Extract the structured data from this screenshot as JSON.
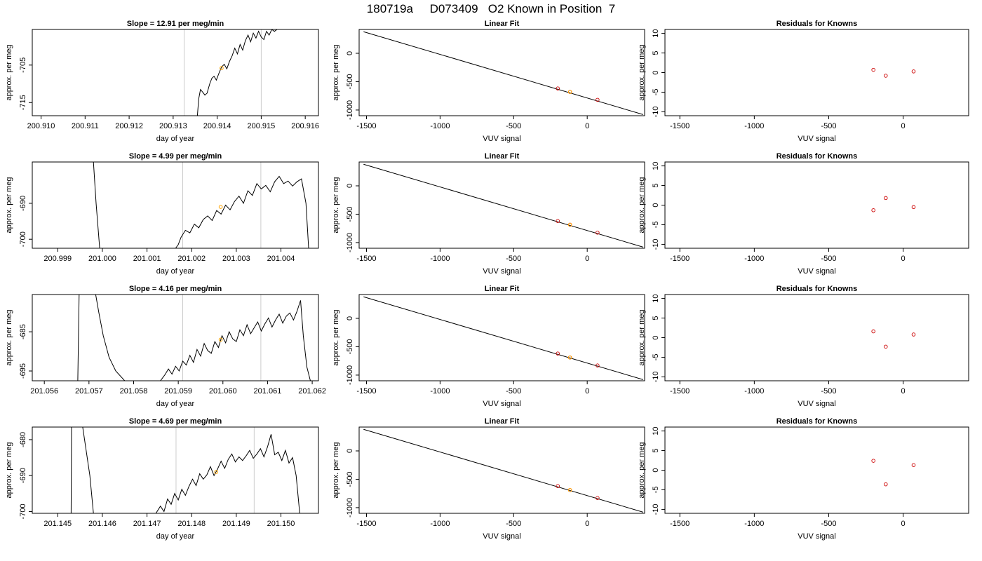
{
  "page_title": "180719a     D073409   O2 Known in Position  7",
  "colors": {
    "trace": "#000000",
    "vline": "#cccccc",
    "known_point": "#ffa500",
    "fit_point": "#cc0000",
    "fit_line": "#000000"
  },
  "chart_data": [
    {
      "type": "line",
      "row": 1,
      "title": "Slope =  12.91  per meg/min",
      "xlabel": "day of year",
      "ylabel": "approx. per meg",
      "xlim": [
        200.9098,
        200.9163
      ],
      "ylim": [
        -718.5,
        -695.5
      ],
      "xticks": [
        200.91,
        200.911,
        200.912,
        200.913,
        200.914,
        200.915,
        200.916
      ],
      "xtick_labels": [
        "200.910",
        "200.911",
        "200.912",
        "200.913",
        "200.914",
        "200.915",
        "200.916"
      ],
      "yticks": [
        -705,
        -715
      ],
      "ytick_labels": [
        "-705",
        "-715"
      ],
      "vlines": [
        200.91325,
        200.915
      ],
      "trace_x": [
        200.91355,
        200.91358,
        200.91362,
        200.91367,
        200.91372,
        200.91377,
        200.91383,
        200.91388,
        200.91393,
        200.91398,
        200.91404,
        200.9141,
        200.91416,
        200.91422,
        200.91428,
        200.91434,
        200.9144,
        200.91446,
        200.91452,
        200.91458,
        200.91464,
        200.9147,
        200.91476,
        200.91482,
        200.91488,
        200.91494,
        200.915,
        200.91506,
        200.91512,
        200.91518,
        200.91524,
        200.9153,
        200.91536
      ],
      "trace_y": [
        -718.5,
        -714.0,
        -711.5,
        -712.2,
        -713.0,
        -712.5,
        -710.0,
        -708.5,
        -708.0,
        -709.0,
        -707.2,
        -705.5,
        -704.8,
        -706.0,
        -704.0,
        -702.5,
        -700.5,
        -702.0,
        -699.5,
        -701.0,
        -698.5,
        -697.0,
        -698.8,
        -696.5,
        -697.8,
        -696.0,
        -697.5,
        -698.2,
        -696.0,
        -697.0,
        -695.5,
        -696.0,
        -695.5
      ],
      "known_point": {
        "x": 200.9141,
        "y": -705.8
      }
    },
    {
      "type": "line",
      "title": "Linear Fit",
      "xlabel": "VUV signal",
      "ylabel": "approx. per meg",
      "xlim": [
        -1550,
        390
      ],
      "ylim": [
        -1100,
        420
      ],
      "xticks": [
        -1500,
        -1000,
        -500,
        0
      ],
      "xtick_labels": [
        "-1500",
        "-1000",
        "-500",
        "0"
      ],
      "yticks": [
        0,
        -500,
        -1000
      ],
      "ytick_labels": [
        "0",
        "-500",
        "-1000"
      ],
      "fit_line": {
        "x": [
          -1520,
          380
        ],
        "y": [
          380,
          -1080
        ]
      },
      "points": [
        {
          "x": -200,
          "y": -620
        },
        {
          "x": -117,
          "y": -680
        },
        {
          "x": 70,
          "y": -820
        }
      ],
      "highlight": {
        "x": -117,
        "y": -681
      }
    },
    {
      "type": "scatter",
      "title": "Residuals for Knowns",
      "xlabel": "VUV signal",
      "ylabel": "approx. per meg",
      "xlim": [
        -1600,
        440
      ],
      "ylim": [
        -11,
        11
      ],
      "xticks": [
        -1500,
        -1000,
        -500,
        0
      ],
      "xtick_labels": [
        "-1500",
        "-1000",
        "-500",
        "0"
      ],
      "yticks": [
        10,
        5,
        0,
        -5,
        -10
      ],
      "ytick_labels": [
        "10",
        "5",
        "0",
        "-5",
        "-10"
      ],
      "points": [
        {
          "x": -200,
          "y": 0.7
        },
        {
          "x": -117,
          "y": -0.8
        },
        {
          "x": 70,
          "y": 0.3
        }
      ]
    },
    {
      "type": "line",
      "row": 2,
      "title": "Slope =  4.99  per meg/min",
      "xlabel": "day of year",
      "ylabel": "approx. per meg",
      "xlim": [
        200.99843,
        201.00484
      ],
      "ylim": [
        -702.5,
        -678.5
      ],
      "xticks": [
        200.999,
        201.0,
        201.001,
        201.002,
        201.003,
        201.004
      ],
      "xtick_labels": [
        "200.999",
        "201.000",
        "201.001",
        "201.002",
        "201.003",
        "201.004"
      ],
      "yticks": [
        -690,
        -700
      ],
      "ytick_labels": [
        "-690",
        "-700"
      ],
      "vlines": [
        201.0018,
        201.00355
      ],
      "trace_x": [
        200.9995,
        200.9996,
        200.9997,
        200.9998,
        200.99986,
        200.99994,
        201.00004,
        201.00014,
        201.00024,
        201.00034,
        201.00044,
        201.00054,
        201.00064,
        201.00074,
        201.00084,
        201.00094,
        201.00104,
        201.00114,
        201.00124,
        201.00134,
        201.00144,
        201.00154,
        201.00164,
        201.0017,
        201.00176,
        201.00186,
        201.00196,
        201.00206,
        201.00216,
        201.00226,
        201.00236,
        201.00246,
        201.00256,
        201.00266,
        201.00276,
        201.00286,
        201.00296,
        201.00306,
        201.00316,
        201.00326,
        201.00336,
        201.00346,
        201.00356,
        201.00366,
        201.00376,
        201.00386,
        201.00396,
        201.00406,
        201.00416,
        201.00426,
        201.00436,
        201.00446,
        201.00456,
        201.00462
      ],
      "trace_y": [
        -678.5,
        -678.5,
        -678.5,
        -678.5,
        -690.0,
        -702.5,
        -702.5,
        -702.5,
        -702.5,
        -702.5,
        -702.5,
        -702.5,
        -702.5,
        -702.5,
        -702.5,
        -702.5,
        -702.5,
        -702.5,
        -702.5,
        -702.5,
        -702.5,
        -702.5,
        -702.5,
        -701.5,
        -699.5,
        -697.5,
        -698.2,
        -695.8,
        -696.8,
        -694.5,
        -693.5,
        -694.8,
        -692.0,
        -693.0,
        -690.5,
        -691.8,
        -689.5,
        -688.0,
        -690.0,
        -686.5,
        -687.8,
        -684.5,
        -686.0,
        -685.0,
        -686.8,
        -684.0,
        -682.5,
        -684.5,
        -683.8,
        -685.2,
        -684.0,
        -683.2,
        -690.0,
        -702.5
      ],
      "trace_note": "",
      "known_point": {
        "x": 201.00265,
        "y": -691.0
      }
    },
    {
      "type": "line",
      "title": "Linear Fit",
      "xlabel": "VUV signal",
      "ylabel": "approx. per meg",
      "xlim": [
        -1550,
        390
      ],
      "ylim": [
        -1100,
        420
      ],
      "xticks": [
        -1500,
        -1000,
        -500,
        0
      ],
      "xtick_labels": [
        "-1500",
        "-1000",
        "-500",
        "0"
      ],
      "yticks": [
        0,
        -500,
        -1000
      ],
      "ytick_labels": [
        "0",
        "-500",
        "-1000"
      ],
      "fit_line": {
        "x": [
          -1520,
          380
        ],
        "y": [
          380,
          -1080
        ]
      },
      "points": [
        {
          "x": -200,
          "y": -620
        },
        {
          "x": -117,
          "y": -685
        },
        {
          "x": 70,
          "y": -825
        }
      ],
      "highlight": {
        "x": -117,
        "y": -687
      }
    },
    {
      "type": "scatter",
      "title": "Residuals for Knowns",
      "xlabel": "VUV signal",
      "ylabel": "approx. per meg",
      "xlim": [
        -1600,
        440
      ],
      "ylim": [
        -11,
        11
      ],
      "xticks": [
        -1500,
        -1000,
        -500,
        0
      ],
      "xtick_labels": [
        "-1500",
        "-1000",
        "-500",
        "0"
      ],
      "yticks": [
        10,
        5,
        0,
        -5,
        -10
      ],
      "ytick_labels": [
        "10",
        "5",
        "0",
        "-5",
        "-10"
      ],
      "points": [
        {
          "x": -200,
          "y": -1.3
        },
        {
          "x": -117,
          "y": 1.8
        },
        {
          "x": 70,
          "y": -0.5
        }
      ]
    },
    {
      "type": "line",
      "row": 3,
      "title": "Slope =  4.16  per meg/min",
      "xlabel": "day of year",
      "ylabel": "approx. per meg",
      "xlim": [
        201.05573,
        201.06214
      ],
      "ylim": [
        -697.5,
        -675.5
      ],
      "xticks": [
        201.056,
        201.057,
        201.058,
        201.059,
        201.06,
        201.061,
        201.062
      ],
      "xtick_labels": [
        "201.056",
        "201.057",
        "201.058",
        "201.059",
        "201.060",
        "201.061",
        "201.062"
      ],
      "yticks": [
        -685,
        -695
      ],
      "ytick_labels": [
        "-685",
        "-695"
      ],
      "vlines": [
        201.0591,
        201.06085
      ],
      "trace_x": [
        201.05675,
        201.05678,
        201.057,
        201.05715,
        201.05722,
        201.05732,
        201.05745,
        201.0576,
        201.0578,
        201.058,
        201.0582,
        201.0584,
        201.0586,
        201.0587,
        201.05878,
        201.05886,
        201.05894,
        201.05902,
        201.0591,
        201.05918,
        201.05926,
        201.05934,
        201.05942,
        201.0595,
        201.05958,
        201.05966,
        201.05974,
        201.05982,
        201.0599,
        201.05998,
        201.06006,
        201.06014,
        201.06022,
        201.0603,
        201.06038,
        201.06046,
        201.06054,
        201.06062,
        201.0607,
        201.06078,
        201.06086,
        201.06094,
        201.06102,
        201.0611,
        201.06118,
        201.06126,
        201.06134,
        201.06142,
        201.0615,
        201.06158,
        201.06166,
        201.06174,
        201.0618,
        201.06188,
        201.06196
      ],
      "trace_y": [
        -697.5,
        -675.5,
        -675.5,
        -675.5,
        -680.0,
        -686.0,
        -691.5,
        -695.0,
        -697.5,
        -697.5,
        -697.5,
        -697.5,
        -697.5,
        -696.0,
        -694.5,
        -695.8,
        -693.8,
        -695.0,
        -692.5,
        -693.5,
        -691.0,
        -692.8,
        -689.5,
        -691.2,
        -688.0,
        -689.8,
        -690.5,
        -687.5,
        -689.0,
        -686.0,
        -687.8,
        -685.0,
        -686.8,
        -687.5,
        -684.5,
        -686.0,
        -683.2,
        -685.5,
        -684.0,
        -682.5,
        -684.8,
        -683.0,
        -681.5,
        -683.8,
        -682.0,
        -680.5,
        -682.8,
        -681.0,
        -680.2,
        -682.0,
        -679.8,
        -677.0,
        -686.0,
        -694.0,
        -697.5
      ],
      "known_point": {
        "x": 201.05995,
        "y": -687.0
      }
    },
    {
      "type": "line",
      "title": "Linear Fit",
      "xlabel": "VUV signal",
      "ylabel": "approx. per meg",
      "xlim": [
        -1550,
        390
      ],
      "ylim": [
        -1100,
        420
      ],
      "xticks": [
        -1500,
        -1000,
        -500,
        0
      ],
      "xtick_labels": [
        "-1500",
        "-1000",
        "-500",
        "0"
      ],
      "yticks": [
        0,
        -500,
        -1000
      ],
      "ytick_labels": [
        "0",
        "-500",
        "-1000"
      ],
      "fit_line": {
        "x": [
          -1520,
          380
        ],
        "y": [
          380,
          -1080
        ]
      },
      "points": [
        {
          "x": -200,
          "y": -620
        },
        {
          "x": -117,
          "y": -690
        },
        {
          "x": 70,
          "y": -830
        }
      ],
      "highlight": {
        "x": -117,
        "y": -690
      }
    },
    {
      "type": "scatter",
      "title": "Residuals for Knowns",
      "xlabel": "VUV signal",
      "ylabel": "approx. per meg",
      "xlim": [
        -1600,
        440
      ],
      "ylim": [
        -11,
        11
      ],
      "xticks": [
        -1500,
        -1000,
        -500,
        0
      ],
      "xtick_labels": [
        "-1500",
        "-1000",
        "-500",
        "0"
      ],
      "yticks": [
        10,
        5,
        0,
        -5,
        -10
      ],
      "ytick_labels": [
        "10",
        "5",
        "0",
        "-5",
        "-10"
      ],
      "points": [
        {
          "x": -200,
          "y": 1.6
        },
        {
          "x": -117,
          "y": -2.3
        },
        {
          "x": 70,
          "y": 0.8
        }
      ]
    },
    {
      "type": "line",
      "row": 4,
      "title": "Slope =  4.69  per meg/min",
      "xlabel": "day of year",
      "ylabel": "approx. per meg",
      "xlim": [
        201.14443,
        201.15084
      ],
      "ylim": [
        -700.5,
        -676.5
      ],
      "xticks": [
        201.145,
        201.146,
        201.147,
        201.148,
        201.149,
        201.15
      ],
      "xtick_labels": [
        "201.145",
        "201.146",
        "201.147",
        "201.148",
        "201.149",
        "201.150"
      ],
      "yticks": [
        -680,
        -690,
        -700
      ],
      "ytick_labels": [
        "-680",
        "-690",
        "-700"
      ],
      "vlines": [
        201.14765,
        201.1494
      ],
      "trace_x": [
        201.1453,
        201.14531,
        201.14556,
        201.14572,
        201.1458,
        201.146,
        201.1462,
        201.1464,
        201.1466,
        201.1468,
        201.147,
        201.1472,
        201.1473,
        201.14738,
        201.14746,
        201.14754,
        201.14762,
        201.1477,
        201.14778,
        201.14786,
        201.14794,
        201.14802,
        201.1481,
        201.14818,
        201.14826,
        201.14834,
        201.14842,
        201.1485,
        201.14858,
        201.14866,
        201.14874,
        201.14882,
        201.1489,
        201.14898,
        201.14906,
        201.14914,
        201.14922,
        201.1493,
        201.14938,
        201.14946,
        201.14954,
        201.14962,
        201.1497,
        201.14978,
        201.14986,
        201.14994,
        201.15002,
        201.1501,
        201.15018,
        201.15026,
        201.15034,
        201.15042
      ],
      "trace_y": [
        -700.5,
        -676.5,
        -676.5,
        -690.0,
        -700.5,
        -700.5,
        -700.5,
        -700.5,
        -700.5,
        -700.5,
        -700.5,
        -700.5,
        -698.5,
        -700.0,
        -696.5,
        -698.0,
        -695.0,
        -696.8,
        -693.8,
        -695.5,
        -693.0,
        -691.0,
        -692.8,
        -689.5,
        -691.0,
        -689.8,
        -687.5,
        -690.0,
        -688.2,
        -686.0,
        -688.0,
        -685.5,
        -684.0,
        -686.2,
        -684.8,
        -685.8,
        -684.5,
        -683.0,
        -685.2,
        -684.0,
        -682.5,
        -684.8,
        -682.0,
        -678.5,
        -684.2,
        -683.5,
        -685.8,
        -683.0,
        -686.5,
        -685.0,
        -690.0,
        -700.5
      ],
      "known_point": {
        "x": 201.14855,
        "y": -689.0
      }
    },
    {
      "type": "line",
      "title": "Linear Fit",
      "xlabel": "VUV signal",
      "ylabel": "approx. per meg",
      "xlim": [
        -1550,
        390
      ],
      "ylim": [
        -1100,
        420
      ],
      "xticks": [
        -1500,
        -1000,
        -500,
        0
      ],
      "xtick_labels": [
        "-1500",
        "-1000",
        "-500",
        "0"
      ],
      "yticks": [
        0,
        -500,
        -1000
      ],
      "ytick_labels": [
        "0",
        "-500",
        "-1000"
      ],
      "fit_line": {
        "x": [
          -1520,
          380
        ],
        "y": [
          380,
          -1080
        ]
      },
      "points": [
        {
          "x": -200,
          "y": -620
        },
        {
          "x": -117,
          "y": -690
        },
        {
          "x": 70,
          "y": -830
        }
      ],
      "highlight": {
        "x": -117,
        "y": -690
      }
    },
    {
      "type": "scatter",
      "title": "Residuals for Knowns",
      "xlabel": "VUV signal",
      "ylabel": "approx. per meg",
      "xlim": [
        -1600,
        440
      ],
      "ylim": [
        -11,
        11
      ],
      "xticks": [
        -1500,
        -1000,
        -500,
        0
      ],
      "xtick_labels": [
        "-1500",
        "-1000",
        "-500",
        "0"
      ],
      "yticks": [
        10,
        5,
        0,
        -5,
        -10
      ],
      "ytick_labels": [
        "10",
        "5",
        "0",
        "-5",
        "-10"
      ],
      "points": [
        {
          "x": -200,
          "y": 2.4
        },
        {
          "x": -117,
          "y": -3.6
        },
        {
          "x": 70,
          "y": 1.3
        }
      ]
    }
  ]
}
